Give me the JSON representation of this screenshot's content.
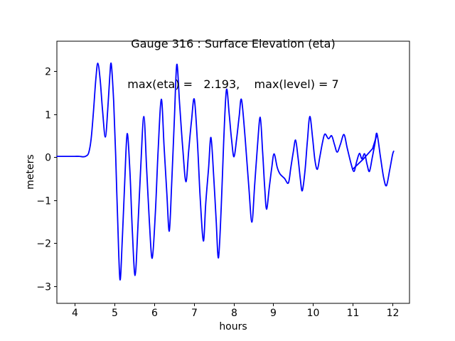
{
  "figure": {
    "title_line1": "Gauge 316 : Surface Elevation (eta)",
    "title_line2": "max(eta) =   2.193,    max(level) = 7"
  },
  "chart_data": {
    "type": "line",
    "title": "Gauge 316 : Surface Elevation (eta)",
    "subtitle": "max(eta) =   2.193,    max(level) = 7",
    "xlabel": "hours",
    "ylabel": "meters",
    "xlim": [
      3.55,
      12.43
    ],
    "ylim": [
      -3.4,
      2.7
    ],
    "xticks": [
      4,
      5,
      6,
      7,
      8,
      9,
      10,
      11,
      12
    ],
    "yticks": [
      -3,
      -2,
      -1,
      0,
      1,
      2
    ],
    "grid": false,
    "legend": null,
    "line_color": "#0000ff",
    "max_eta": 2.193,
    "max_level": 7,
    "series": [
      {
        "name": "surface-elevation-eta",
        "interp": "smooth",
        "points": [
          [
            3.55,
            0.02
          ],
          [
            3.7,
            0.02
          ],
          [
            3.85,
            0.02
          ],
          [
            4.0,
            0.02
          ],
          [
            4.12,
            0.02
          ],
          [
            4.22,
            0.01
          ],
          [
            4.29,
            0.03
          ],
          [
            4.35,
            0.1
          ],
          [
            4.41,
            0.4
          ],
          [
            4.47,
            1.05
          ],
          [
            4.53,
            1.8
          ],
          [
            4.58,
            2.19
          ],
          [
            4.64,
            1.8
          ],
          [
            4.7,
            1.1
          ],
          [
            4.77,
            0.47
          ],
          [
            4.83,
            1.1
          ],
          [
            4.88,
            1.85
          ],
          [
            4.92,
            2.17
          ],
          [
            4.98,
            1.3
          ],
          [
            5.03,
            0.05
          ],
          [
            5.08,
            -1.45
          ],
          [
            5.14,
            -2.85
          ],
          [
            5.2,
            -1.85
          ],
          [
            5.26,
            -0.55
          ],
          [
            5.32,
            0.55
          ],
          [
            5.39,
            -0.35
          ],
          [
            5.45,
            -1.7
          ],
          [
            5.52,
            -2.75
          ],
          [
            5.59,
            -1.65
          ],
          [
            5.66,
            -0.25
          ],
          [
            5.74,
            0.95
          ],
          [
            5.81,
            -0.25
          ],
          [
            5.88,
            -1.5
          ],
          [
            5.95,
            -2.35
          ],
          [
            6.03,
            -1.3
          ],
          [
            6.1,
            0.15
          ],
          [
            6.18,
            1.35
          ],
          [
            6.25,
            0.25
          ],
          [
            6.32,
            -0.85
          ],
          [
            6.38,
            -1.72
          ],
          [
            6.44,
            -0.65
          ],
          [
            6.51,
            0.9
          ],
          [
            6.57,
            2.16
          ],
          [
            6.64,
            1.25
          ],
          [
            6.72,
            0.2
          ],
          [
            6.8,
            -0.57
          ],
          [
            6.87,
            0.15
          ],
          [
            6.94,
            0.85
          ],
          [
            7.01,
            1.35
          ],
          [
            7.09,
            0.35
          ],
          [
            7.16,
            -0.95
          ],
          [
            7.24,
            -1.95
          ],
          [
            7.3,
            -1.05
          ],
          [
            7.37,
            -0.25
          ],
          [
            7.43,
            0.46
          ],
          [
            7.5,
            -0.45
          ],
          [
            7.56,
            -1.45
          ],
          [
            7.62,
            -2.34
          ],
          [
            7.69,
            -1.15
          ],
          [
            7.75,
            0.35
          ],
          [
            7.82,
            1.57
          ],
          [
            7.89,
            1.0
          ],
          [
            7.95,
            0.4
          ],
          [
            8.01,
            0.01
          ],
          [
            8.08,
            0.45
          ],
          [
            8.14,
            0.95
          ],
          [
            8.2,
            1.34
          ],
          [
            8.29,
            0.45
          ],
          [
            8.38,
            -0.65
          ],
          [
            8.46,
            -1.51
          ],
          [
            8.53,
            -0.65
          ],
          [
            8.6,
            0.25
          ],
          [
            8.67,
            0.93
          ],
          [
            8.73,
            0.15
          ],
          [
            8.78,
            -0.65
          ],
          [
            8.83,
            -1.21
          ],
          [
            8.9,
            -0.7
          ],
          [
            8.96,
            -0.25
          ],
          [
            9.02,
            0.08
          ],
          [
            9.1,
            -0.24
          ],
          [
            9.17,
            -0.39
          ],
          [
            9.28,
            -0.49
          ],
          [
            9.38,
            -0.6
          ],
          [
            9.44,
            -0.25
          ],
          [
            9.5,
            0.1
          ],
          [
            9.56,
            0.4
          ],
          [
            9.62,
            0.02
          ],
          [
            9.68,
            -0.5
          ],
          [
            9.73,
            -0.78
          ],
          [
            9.8,
            -0.3
          ],
          [
            9.86,
            0.4
          ],
          [
            9.92,
            0.95
          ],
          [
            9.99,
            0.45
          ],
          [
            10.05,
            -0.08
          ],
          [
            10.11,
            -0.28
          ],
          [
            10.17,
            0.0
          ],
          [
            10.24,
            0.35
          ],
          [
            10.3,
            0.54
          ],
          [
            10.39,
            0.43
          ],
          [
            10.47,
            0.5
          ],
          [
            10.54,
            0.3
          ],
          [
            10.61,
            0.12
          ],
          [
            10.69,
            0.3
          ],
          [
            10.78,
            0.53
          ],
          [
            10.86,
            0.22
          ],
          [
            10.95,
            -0.12
          ],
          [
            11.03,
            -0.33
          ],
          [
            11.1,
            -0.1
          ],
          [
            11.17,
            0.09
          ],
          [
            11.23,
            -0.04
          ],
          [
            11.3,
            0.08
          ],
          [
            11.36,
            -0.16
          ],
          [
            11.42,
            -0.33
          ],
          [
            11.49,
            -0.02
          ],
          [
            11.56,
            0.32
          ],
          [
            11.61,
            0.55
          ],
          [
            11.7,
            0.0
          ],
          [
            11.78,
            -0.48
          ],
          [
            11.85,
            -0.66
          ],
          [
            11.93,
            -0.3
          ],
          [
            12.0,
            0.05
          ],
          [
            12.03,
            0.14
          ]
        ]
      },
      {
        "name": "overlapping-gauge-segment",
        "interp": "linear",
        "points": [
          [
            11.0,
            -0.28
          ],
          [
            11.26,
            -0.05
          ],
          [
            11.5,
            0.2
          ],
          [
            11.61,
            0.53
          ]
        ]
      }
    ]
  }
}
